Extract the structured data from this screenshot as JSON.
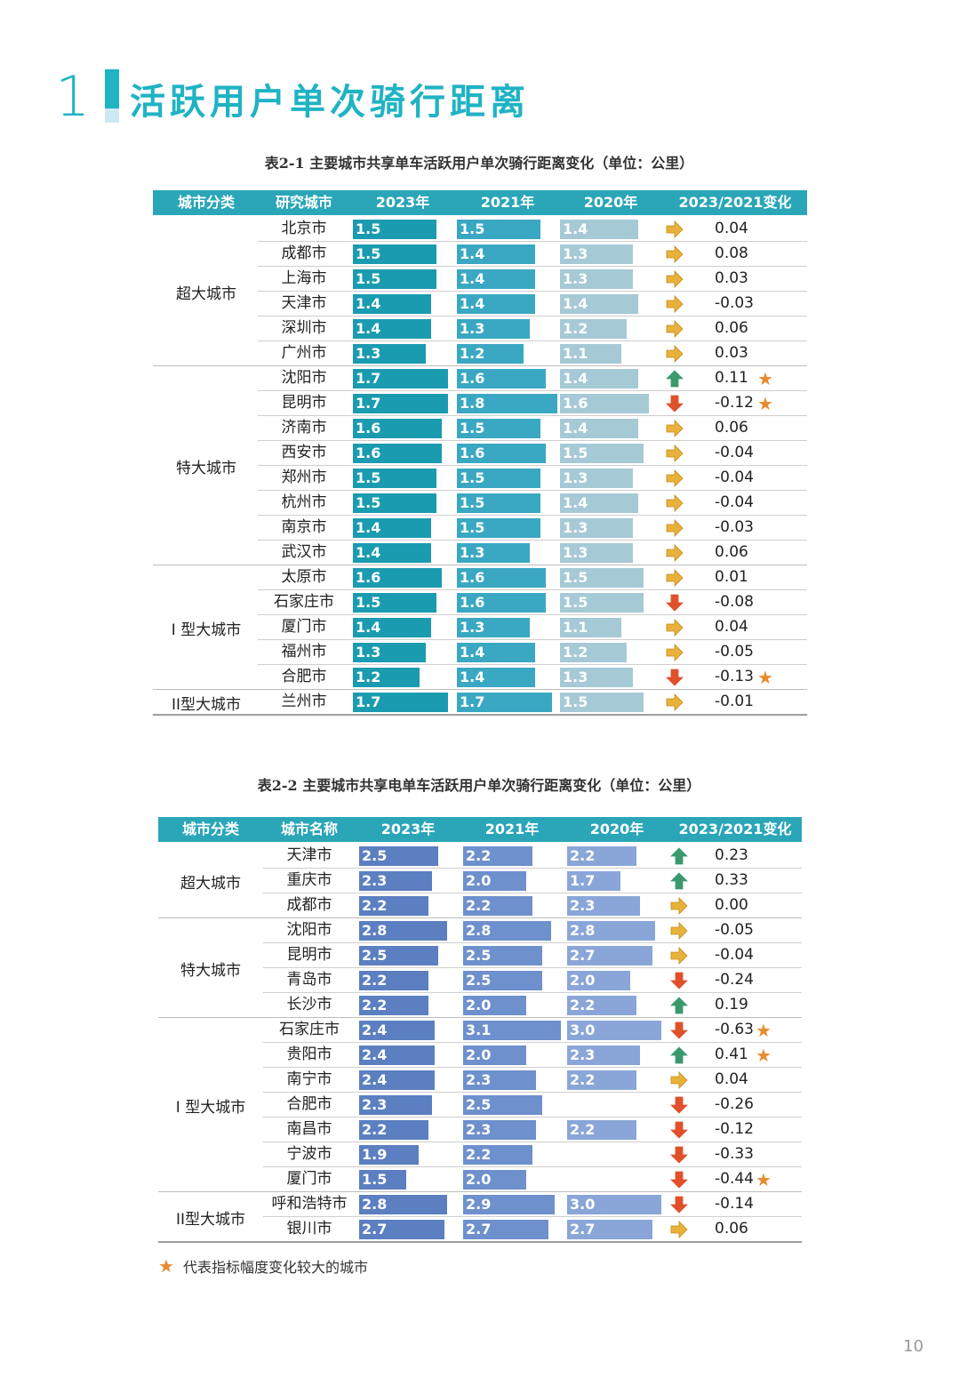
{
  "section": {
    "number": "1",
    "title": "活跃用户单次骑行距离"
  },
  "table1": {
    "caption": "表2-1 主要城市共享单车活跃用户单次骑行距离变化（单位：公里）",
    "headers": [
      "城市分类",
      "研究城市",
      "2023年",
      "2021年",
      "2020年",
      "2023/2021变化"
    ],
    "colors": {
      "header": "#2aa6b8",
      "bar2023": "#1b9bb0",
      "bar2021": "#3aa8c2",
      "bar2020": "#a6c9d6"
    },
    "groups": [
      {
        "name": "超大城市",
        "rows": [
          {
            "city": "北京市",
            "v2023": 1.5,
            "v2021": 1.5,
            "v2020": 1.4,
            "trend": "flat",
            "change": "0.04",
            "star": false
          },
          {
            "city": "成都市",
            "v2023": 1.5,
            "v2021": 1.4,
            "v2020": 1.3,
            "trend": "flat",
            "change": "0.08",
            "star": false
          },
          {
            "city": "上海市",
            "v2023": 1.5,
            "v2021": 1.4,
            "v2020": 1.3,
            "trend": "flat",
            "change": "0.03",
            "star": false
          },
          {
            "city": "天津市",
            "v2023": 1.4,
            "v2021": 1.4,
            "v2020": 1.4,
            "trend": "flat",
            "change": "-0.03",
            "star": false
          },
          {
            "city": "深圳市",
            "v2023": 1.4,
            "v2021": 1.3,
            "v2020": 1.2,
            "trend": "flat",
            "change": "0.06",
            "star": false
          },
          {
            "city": "广州市",
            "v2023": 1.3,
            "v2021": 1.2,
            "v2020": 1.1,
            "trend": "flat",
            "change": "0.03",
            "star": false
          }
        ]
      },
      {
        "name": "特大城市",
        "rows": [
          {
            "city": "沈阳市",
            "v2023": 1.7,
            "v2021": 1.6,
            "v2020": 1.4,
            "trend": "up",
            "change": "0.11",
            "star": true
          },
          {
            "city": "昆明市",
            "v2023": 1.7,
            "v2021": 1.8,
            "v2020": 1.6,
            "trend": "down",
            "change": "-0.12",
            "star": true
          },
          {
            "city": "济南市",
            "v2023": 1.6,
            "v2021": 1.5,
            "v2020": 1.4,
            "trend": "flat",
            "change": "0.06",
            "star": false
          },
          {
            "city": "西安市",
            "v2023": 1.6,
            "v2021": 1.6,
            "v2020": 1.5,
            "trend": "flat",
            "change": "-0.04",
            "star": false
          },
          {
            "city": "郑州市",
            "v2023": 1.5,
            "v2021": 1.5,
            "v2020": 1.3,
            "trend": "flat",
            "change": "-0.04",
            "star": false
          },
          {
            "city": "杭州市",
            "v2023": 1.5,
            "v2021": 1.5,
            "v2020": 1.4,
            "trend": "flat",
            "change": "-0.04",
            "star": false
          },
          {
            "city": "南京市",
            "v2023": 1.4,
            "v2021": 1.5,
            "v2020": 1.3,
            "trend": "flat",
            "change": "-0.03",
            "star": false
          },
          {
            "city": "武汉市",
            "v2023": 1.4,
            "v2021": 1.3,
            "v2020": 1.3,
            "trend": "flat",
            "change": "0.06",
            "star": false
          }
        ]
      },
      {
        "name": "I 型大城市",
        "rows": [
          {
            "city": "太原市",
            "v2023": 1.6,
            "v2021": 1.6,
            "v2020": 1.5,
            "trend": "flat",
            "change": "0.01",
            "star": false
          },
          {
            "city": "石家庄市",
            "v2023": 1.5,
            "v2021": 1.6,
            "v2020": 1.5,
            "trend": "down",
            "change": "-0.08",
            "star": false
          },
          {
            "city": "厦门市",
            "v2023": 1.4,
            "v2021": 1.3,
            "v2020": 1.1,
            "trend": "flat",
            "change": "0.04",
            "star": false
          },
          {
            "city": "福州市",
            "v2023": 1.3,
            "v2021": 1.4,
            "v2020": 1.2,
            "trend": "flat",
            "change": "-0.05",
            "star": false
          },
          {
            "city": "合肥市",
            "v2023": 1.2,
            "v2021": 1.4,
            "v2020": 1.3,
            "trend": "down",
            "change": "-0.13",
            "star": true
          }
        ]
      },
      {
        "name": "II型大城市",
        "rows": [
          {
            "city": "兰州市",
            "v2023": 1.7,
            "v2021": 1.7,
            "v2020": 1.5,
            "trend": "flat",
            "change": "-0.01",
            "star": false
          }
        ]
      }
    ]
  },
  "table2": {
    "caption": "表2-2 主要城市共享电单车活跃用户单次骑行距离变化（单位：公里）",
    "headers": [
      "城市分类",
      "城市名称",
      "2023年",
      "2021年",
      "2020年",
      "2023/2021变化"
    ],
    "colors": {
      "header": "#2aa6b8",
      "bar2023": "#5b7fc0",
      "bar2021": "#6e90cc",
      "bar2020": "#8aa6d8"
    },
    "groups": [
      {
        "name": "超大城市",
        "rows": [
          {
            "city": "天津市",
            "v2023": 2.5,
            "v2021": 2.2,
            "v2020": 2.2,
            "trend": "up",
            "change": "0.23",
            "star": false
          },
          {
            "city": "重庆市",
            "v2023": 2.3,
            "v2021": 2.0,
            "v2020": 1.7,
            "trend": "up",
            "change": "0.33",
            "star": false
          },
          {
            "city": "成都市",
            "v2023": 2.2,
            "v2021": 2.2,
            "v2020": 2.3,
            "trend": "flat",
            "change": "0.00",
            "star": false
          }
        ]
      },
      {
        "name": "特大城市",
        "rows": [
          {
            "city": "沈阳市",
            "v2023": 2.8,
            "v2021": 2.8,
            "v2020": 2.8,
            "trend": "flat",
            "change": "-0.05",
            "star": false
          },
          {
            "city": "昆明市",
            "v2023": 2.5,
            "v2021": 2.5,
            "v2020": 2.7,
            "trend": "flat",
            "change": "-0.04",
            "star": false
          },
          {
            "city": "青岛市",
            "v2023": 2.2,
            "v2021": 2.5,
            "v2020": 2.0,
            "trend": "down",
            "change": "-0.24",
            "star": false
          },
          {
            "city": "长沙市",
            "v2023": 2.2,
            "v2021": 2.0,
            "v2020": 2.2,
            "trend": "up",
            "change": "0.19",
            "star": false
          }
        ]
      },
      {
        "name": "I 型大城市",
        "rows": [
          {
            "city": "石家庄市",
            "v2023": 2.4,
            "v2021": 3.1,
            "v2020": 3.0,
            "trend": "down",
            "change": "-0.63",
            "star": true
          },
          {
            "city": "贵阳市",
            "v2023": 2.4,
            "v2021": 2.0,
            "v2020": 2.3,
            "trend": "up",
            "change": "0.41",
            "star": true
          },
          {
            "city": "南宁市",
            "v2023": 2.4,
            "v2021": 2.3,
            "v2020": 2.2,
            "trend": "flat",
            "change": "0.04",
            "star": false
          },
          {
            "city": "合肥市",
            "v2023": 2.3,
            "v2021": 2.5,
            "v2020": null,
            "trend": "down",
            "change": "-0.26",
            "star": false
          },
          {
            "city": "南昌市",
            "v2023": 2.2,
            "v2021": 2.3,
            "v2020": 2.2,
            "trend": "down",
            "change": "-0.12",
            "star": false
          },
          {
            "city": "宁波市",
            "v2023": 1.9,
            "v2021": 2.2,
            "v2020": null,
            "trend": "down",
            "change": "-0.33",
            "star": false
          },
          {
            "city": "厦门市",
            "v2023": 1.5,
            "v2021": 2.0,
            "v2020": null,
            "trend": "down",
            "change": "-0.44",
            "star": true
          }
        ]
      },
      {
        "name": "II型大城市",
        "rows": [
          {
            "city": "呼和浩特市",
            "v2023": 2.8,
            "v2021": 2.9,
            "v2020": 3.0,
            "trend": "down",
            "change": "-0.14",
            "star": false
          },
          {
            "city": "银川市",
            "v2023": 2.7,
            "v2021": 2.7,
            "v2020": 2.7,
            "trend": "flat",
            "change": "0.06",
            "star": false
          }
        ]
      }
    ]
  },
  "legend": {
    "star": "★",
    "text": "代表指标幅度变化较大的城市"
  },
  "page_number": "10",
  "icons": {
    "up": "green-up-arrow-icon",
    "down": "red-down-arrow-icon",
    "flat": "orange-right-arrow-icon",
    "star": "star-icon"
  },
  "arrow_colors": {
    "up": "#3a9a6e",
    "down": "#e0502a",
    "flat": "#e8b23a"
  }
}
